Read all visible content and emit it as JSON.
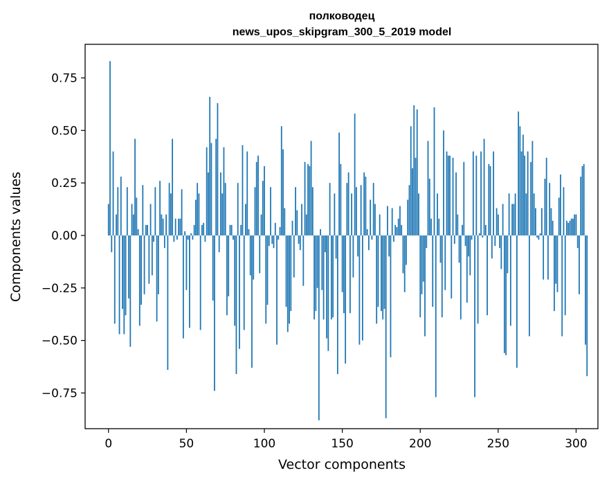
{
  "chart_data": {
    "type": "bar",
    "title": "полководец",
    "subtitle": "news_upos_skipgram_300_5_2019 model",
    "xlabel": "Vector components",
    "ylabel": "Components values",
    "xlim": [
      -15,
      314
    ],
    "ylim": [
      -0.92,
      0.91
    ],
    "xticks": [
      0,
      50,
      100,
      150,
      200,
      250,
      300
    ],
    "yticks": [
      -0.75,
      -0.5,
      -0.25,
      0.0,
      0.25,
      0.5,
      0.75
    ],
    "ytick_labels": [
      "−0.75",
      "−0.50",
      "−0.25",
      "0.00",
      "0.25",
      "0.50",
      "0.75"
    ],
    "xtick_labels": [
      "0",
      "50",
      "100",
      "150",
      "200",
      "250",
      "300"
    ],
    "grid": false,
    "bar_color": "#1f77b4",
    "values": [
      0.15,
      0.83,
      -0.08,
      0.4,
      -0.42,
      0.1,
      0.23,
      -0.47,
      0.28,
      -0.35,
      -0.47,
      -0.38,
      0.23,
      -0.3,
      -0.53,
      0.15,
      0.1,
      0.46,
      0.18,
      0.03,
      -0.43,
      -0.33,
      0.24,
      -0.28,
      0.05,
      0.05,
      -0.23,
      0.15,
      -0.19,
      -0.03,
      0.23,
      -0.41,
      -0.28,
      0.26,
      0.1,
      0.08,
      -0.06,
      0.1,
      -0.64,
      0.25,
      0.2,
      0.46,
      -0.03,
      0.08,
      -0.02,
      0.08,
      0.08,
      0.22,
      -0.49,
      0.02,
      -0.26,
      -0.02,
      -0.44,
      0.01,
      -0.02,
      0.05,
      0.17,
      0.25,
      0.2,
      -0.45,
      0.05,
      0.06,
      -0.03,
      0.42,
      0.3,
      0.66,
      0.44,
      -0.31,
      -0.74,
      0.46,
      0.63,
      -0.08,
      0.3,
      0.2,
      0.42,
      0.25,
      -0.38,
      -0.29,
      0.05,
      0.05,
      -0.02,
      -0.43,
      -0.66,
      0.25,
      -0.54,
      0.05,
      0.43,
      -0.45,
      0.15,
      0.4,
      0.03,
      -0.19,
      -0.63,
      -0.21,
      0.23,
      0.35,
      0.38,
      -0.18,
      0.1,
      0.26,
      0.33,
      -0.42,
      -0.33,
      -0.05,
      0.23,
      -0.04,
      -0.06,
      0.06,
      -0.52,
      -0.02,
      0.04,
      0.52,
      0.41,
      0.13,
      -0.34,
      -0.46,
      -0.42,
      -0.36,
      0.07,
      -0.2,
      0.23,
      0.12,
      -0.04,
      -0.07,
      0.15,
      -0.24,
      0.35,
      0.1,
      0.34,
      0.33,
      0.45,
      0.23,
      -0.4,
      -0.36,
      -0.25,
      -0.88,
      0.03,
      -0.26,
      -0.4,
      -0.08,
      -0.49,
      -0.55,
      0.25,
      -0.4,
      -0.39,
      0.2,
      -0.11,
      -0.66,
      0.49,
      0.34,
      -0.27,
      -0.37,
      -0.61,
      0.25,
      0.3,
      -0.37,
      0.2,
      -0.2,
      0.58,
      0.23,
      -0.1,
      -0.52,
      0.24,
      -0.5,
      0.3,
      0.28,
      0.03,
      -0.07,
      0.17,
      -0.02,
      0.25,
      0.15,
      -0.42,
      -0.34,
      0.1,
      -0.36,
      -0.4,
      -0.35,
      -0.87,
      0.14,
      -0.1,
      -0.58,
      0.13,
      -0.03,
      0.05,
      0.04,
      0.08,
      0.14,
      0.05,
      -0.18,
      -0.27,
      -0.14,
      0.17,
      0.24,
      0.52,
      0.32,
      0.62,
      0.37,
      0.6,
      0.2,
      -0.39,
      -0.28,
      -0.22,
      -0.48,
      -0.06,
      0.45,
      0.27,
      0.08,
      -0.34,
      0.61,
      -0.77,
      0.2,
      0.08,
      -0.13,
      -0.39,
      0.5,
      -0.26,
      0.4,
      0.38,
      0.38,
      -0.3,
      0.37,
      -0.04,
      0.3,
      0.1,
      -0.13,
      -0.4,
      0.05,
      0.35,
      -0.05,
      -0.32,
      -0.1,
      -0.19,
      -0.02,
      0.4,
      -0.77,
      0.38,
      -0.42,
      0.01,
      0.4,
      -0.01,
      0.46,
      0.05,
      -0.38,
      0.34,
      0.33,
      -0.11,
      0.4,
      -0.05,
      0.13,
      0.1,
      -0.06,
      -0.16,
      0.15,
      -0.56,
      -0.57,
      -0.18,
      0.2,
      -0.43,
      0.15,
      0.15,
      0.2,
      -0.63,
      0.59,
      0.52,
      0.4,
      0.48,
      0.38,
      0.2,
      0.4,
      -0.48,
      0.35,
      0.45,
      0.2,
      0.13,
      -0.01,
      -0.02,
      0.01,
      0.13,
      -0.21,
      0.27,
      0.37,
      -0.21,
      0.25,
      0.13,
      0.07,
      -0.36,
      -0.23,
      -0.27,
      0.18,
      0.29,
      -0.48,
      0.23,
      -0.38,
      0.07,
      0.06,
      0.07,
      0.08,
      0.08,
      0.1,
      0.1,
      -0.06,
      -0.28,
      0.28,
      0.33,
      0.34,
      -0.52,
      -0.67
    ]
  }
}
